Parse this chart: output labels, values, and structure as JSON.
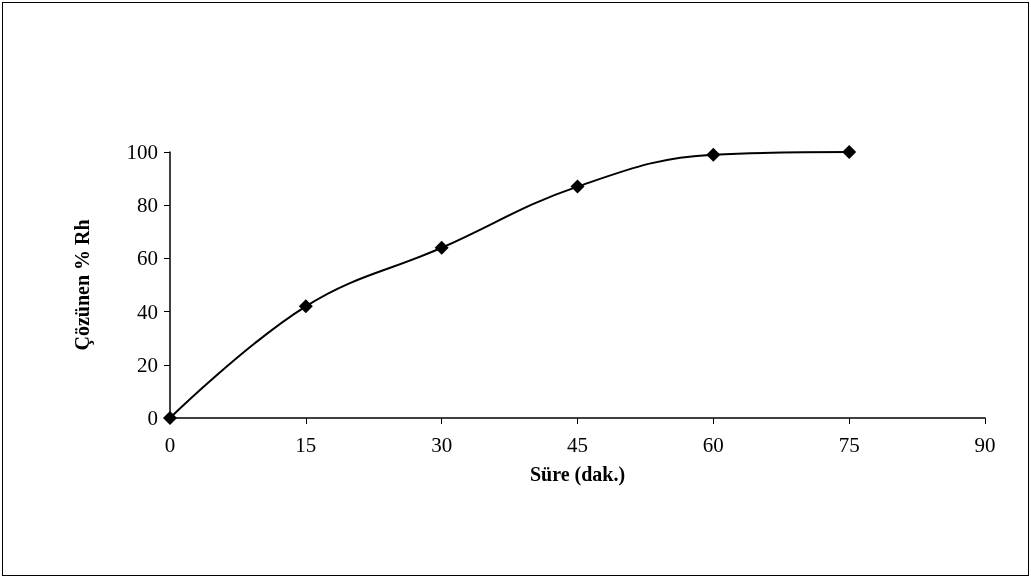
{
  "chart_data": {
    "type": "line",
    "xlabel": "Süre (dak.)",
    "ylabel": "Çözünen % Rh",
    "x": [
      0,
      15,
      30,
      45,
      60,
      75
    ],
    "values": [
      0,
      42,
      64,
      87,
      99,
      100
    ],
    "color": "#000000",
    "xlim": [
      0,
      90
    ],
    "xticks": [
      0,
      15,
      30,
      45,
      60,
      75,
      90
    ],
    "ylim": [
      0,
      100
    ],
    "yticks": [
      0,
      20,
      40,
      60,
      80,
      100
    ],
    "grid": false,
    "marker": "diamond",
    "line_style": "solid"
  }
}
